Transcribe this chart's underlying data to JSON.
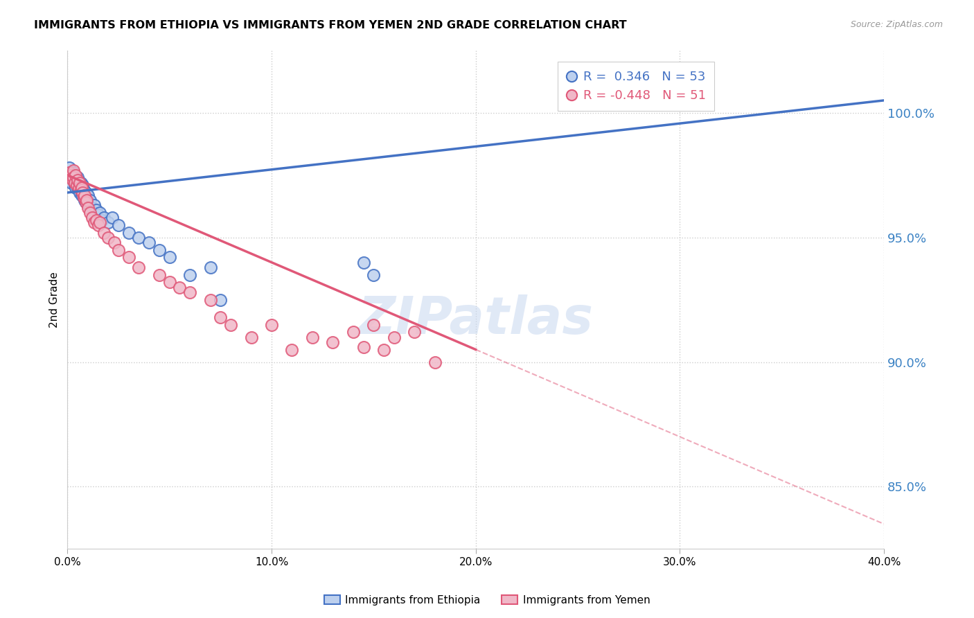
{
  "title": "IMMIGRANTS FROM ETHIOPIA VS IMMIGRANTS FROM YEMEN 2ND GRADE CORRELATION CHART",
  "source": "Source: ZipAtlas.com",
  "ylabel": "2nd Grade",
  "legend_ethiopia": "Immigrants from Ethiopia",
  "legend_yemen": "Immigrants from Yemen",
  "R_ethiopia": 0.346,
  "N_ethiopia": 53,
  "R_yemen": -0.448,
  "N_yemen": 51,
  "blue_color": "#4472C4",
  "pink_color": "#E05878",
  "blue_fill": "#BDD0EE",
  "pink_fill": "#F0B8C8",
  "watermark_text": "ZIPatlas",
  "xmin": 0.0,
  "xmax": 40.0,
  "ymin": 82.5,
  "ymax": 102.5,
  "ytick_vals": [
    85.0,
    90.0,
    95.0,
    100.0
  ],
  "xtick_vals": [
    0.0,
    10.0,
    20.0,
    30.0,
    40.0
  ],
  "ethiopia_x": [
    0.1,
    0.15,
    0.2,
    0.2,
    0.25,
    0.3,
    0.3,
    0.35,
    0.4,
    0.4,
    0.45,
    0.5,
    0.5,
    0.55,
    0.6,
    0.6,
    0.65,
    0.65,
    0.7,
    0.7,
    0.75,
    0.75,
    0.8,
    0.8,
    0.85,
    0.9,
    0.9,
    0.95,
    1.0,
    1.0,
    1.05,
    1.1,
    1.2,
    1.3,
    1.3,
    1.4,
    1.5,
    1.6,
    1.7,
    1.8,
    2.0,
    2.2,
    2.5,
    3.0,
    3.5,
    4.0,
    4.5,
    5.0,
    6.0,
    7.0,
    7.5,
    14.5,
    15.0
  ],
  "ethiopia_y": [
    97.8,
    97.6,
    97.5,
    97.2,
    97.4,
    97.6,
    97.3,
    97.1,
    97.3,
    97.0,
    97.2,
    97.0,
    97.4,
    96.9,
    96.8,
    97.1,
    96.9,
    97.2,
    96.7,
    97.0,
    96.8,
    97.1,
    96.6,
    96.9,
    96.5,
    96.4,
    96.8,
    96.5,
    96.4,
    96.7,
    96.3,
    96.5,
    96.2,
    96.3,
    96.0,
    96.1,
    95.9,
    96.0,
    95.7,
    95.8,
    95.6,
    95.8,
    95.5,
    95.2,
    95.0,
    94.8,
    94.5,
    94.2,
    93.5,
    93.8,
    92.5,
    94.0,
    93.5
  ],
  "yemen_x": [
    0.1,
    0.15,
    0.2,
    0.25,
    0.3,
    0.3,
    0.35,
    0.4,
    0.45,
    0.5,
    0.55,
    0.6,
    0.65,
    0.7,
    0.75,
    0.8,
    0.85,
    0.9,
    0.95,
    1.0,
    1.1,
    1.2,
    1.3,
    1.4,
    1.5,
    1.6,
    1.8,
    2.0,
    2.3,
    2.5,
    3.0,
    3.5,
    4.5,
    5.0,
    5.5,
    6.0,
    7.0,
    7.5,
    8.0,
    9.0,
    10.0,
    11.0,
    12.0,
    13.0,
    14.0,
    14.5,
    15.0,
    15.5,
    16.0,
    17.0,
    18.0
  ],
  "yemen_y": [
    97.6,
    97.4,
    97.5,
    97.3,
    97.7,
    97.4,
    97.2,
    97.5,
    97.1,
    97.3,
    97.0,
    97.2,
    96.9,
    97.0,
    96.8,
    96.6,
    96.7,
    96.4,
    96.5,
    96.2,
    96.0,
    95.8,
    95.6,
    95.7,
    95.5,
    95.6,
    95.2,
    95.0,
    94.8,
    94.5,
    94.2,
    93.8,
    93.5,
    93.2,
    93.0,
    92.8,
    92.5,
    91.8,
    91.5,
    91.0,
    91.5,
    90.5,
    91.0,
    90.8,
    91.2,
    90.6,
    91.5,
    90.5,
    91.0,
    91.2,
    90.0
  ],
  "eth_line_x0": 0.0,
  "eth_line_x1": 40.0,
  "eth_line_y0": 96.8,
  "eth_line_y1": 100.5,
  "yem_line_x0": 0.0,
  "yem_line_x1": 40.0,
  "yem_line_y0": 97.5,
  "yem_line_y1": 83.5,
  "yem_solid_end_x": 20.0
}
